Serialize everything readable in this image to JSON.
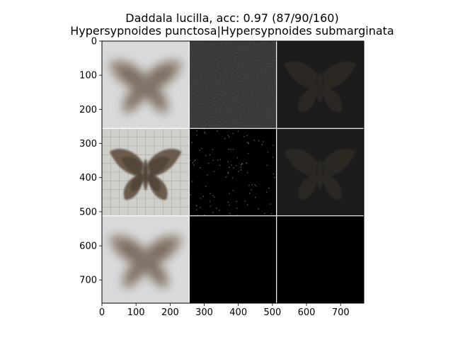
{
  "chart_data": {
    "type": "image-grid",
    "title_line1": "Daddala lucilla, acc: 0.97 (87/90/160)",
    "title_line2": "Hypersypnoides punctosa|Hypersypnoides submarginata",
    "xlim": [
      0,
      768
    ],
    "ylim": [
      768,
      0
    ],
    "x_ticks": [
      0,
      100,
      200,
      300,
      400,
      500,
      600,
      700
    ],
    "y_ticks": [
      0,
      100,
      200,
      300,
      400,
      500,
      600,
      700
    ],
    "grid": {
      "rows": 3,
      "cols": 3,
      "cell_size": 256,
      "separator": "white"
    },
    "cells": [
      {
        "row": 0,
        "col": 0,
        "kind": "blurred-moth"
      },
      {
        "row": 0,
        "col": 1,
        "kind": "dark-noise"
      },
      {
        "row": 0,
        "col": 2,
        "kind": "dark-moth"
      },
      {
        "row": 1,
        "col": 0,
        "kind": "moth-photo"
      },
      {
        "row": 1,
        "col": 1,
        "kind": "sparse-speckle"
      },
      {
        "row": 1,
        "col": 2,
        "kind": "dark-moth"
      },
      {
        "row": 2,
        "col": 0,
        "kind": "blurred-moth"
      },
      {
        "row": 2,
        "col": 1,
        "kind": "black"
      },
      {
        "row": 2,
        "col": 2,
        "kind": "black"
      }
    ],
    "colors": {
      "light_background": "#d9dadc",
      "moth_light": "#8a7866",
      "moth_dark": "#4a3f35",
      "dark_cell": "#1c1c1c",
      "black_cell": "#000000"
    }
  }
}
